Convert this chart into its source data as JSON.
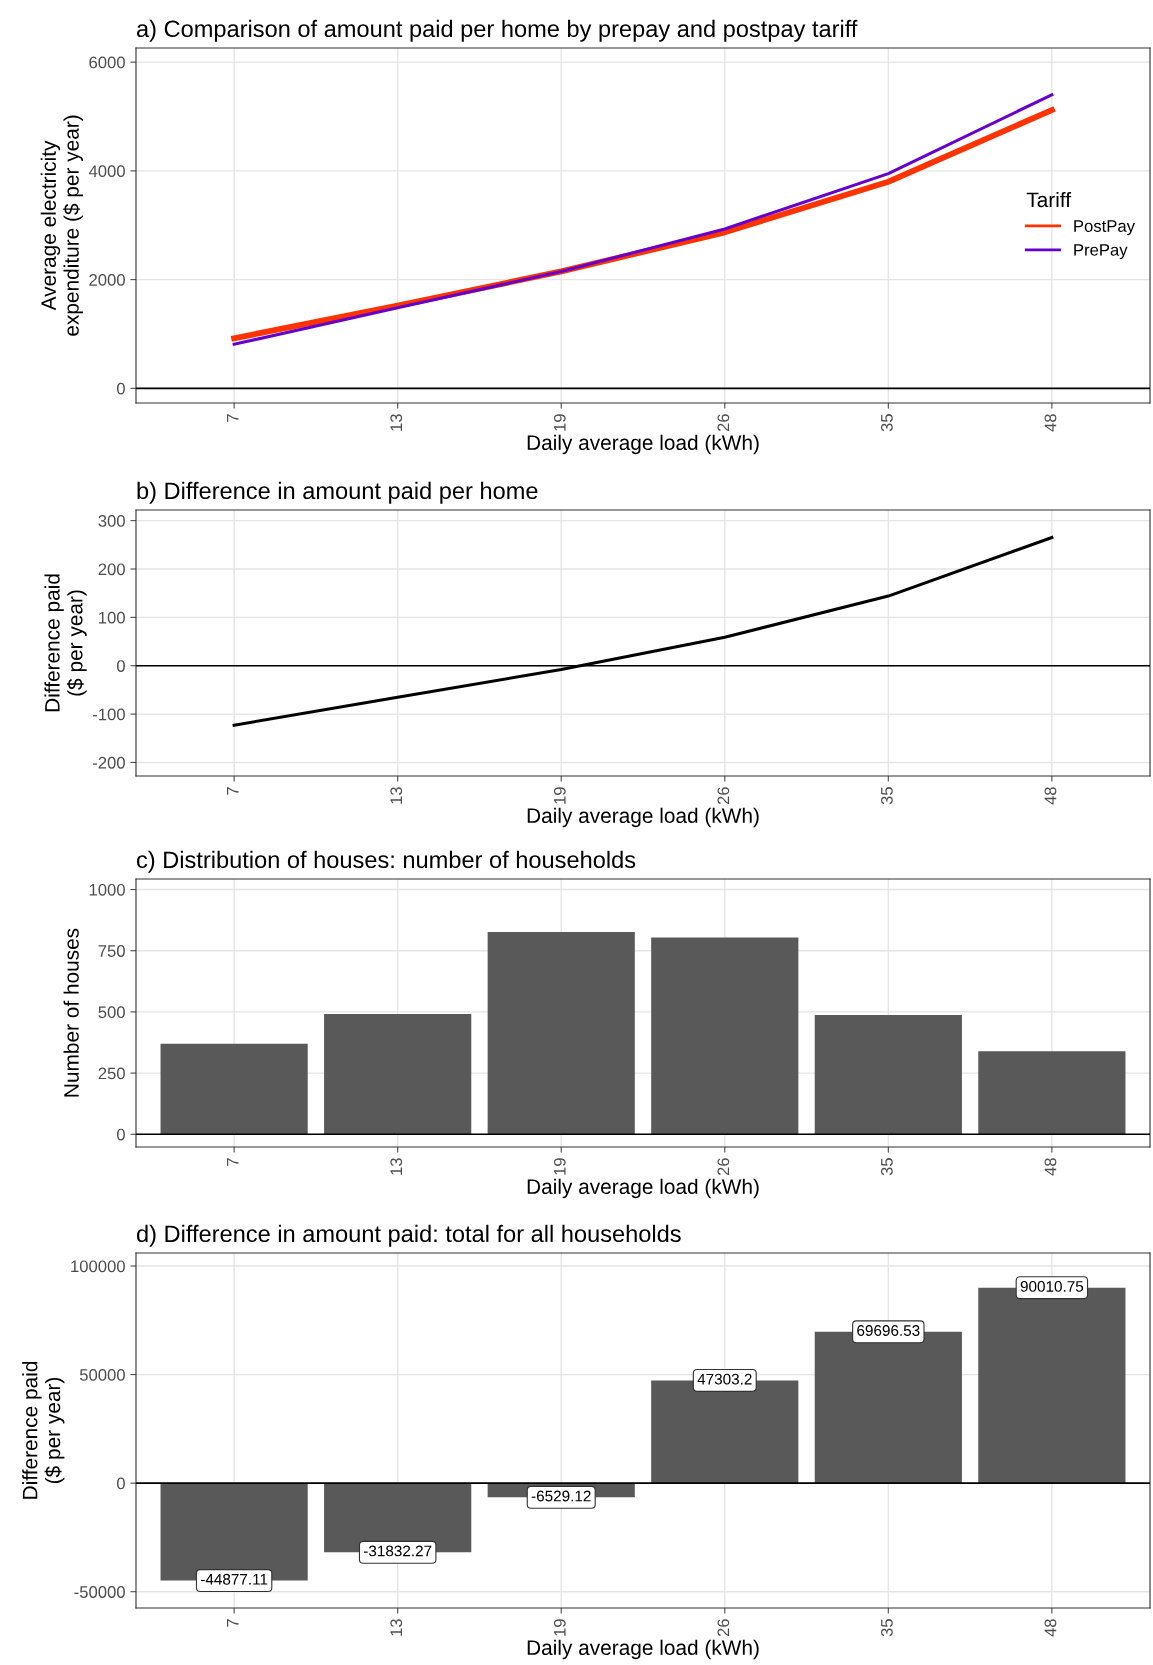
{
  "chart_data": [
    {
      "type": "line",
      "title": "a) Comparison of amount paid per home by prepay and postpay tariff",
      "xlabel": "Daily average load (kWh)",
      "ylabel": "Average electricity\nexpenditure ($ per year)",
      "legend_title": "Tariff",
      "legend": "right",
      "categories": [
        "7",
        "13",
        "19",
        "26",
        "35",
        "48"
      ],
      "series": [
        {
          "name": "PostPay",
          "color": "#ff3300",
          "values": [
            920,
            1520,
            2150,
            2870,
            3800,
            5120
          ]
        },
        {
          "name": "PrePay",
          "color": "#6600cc",
          "values": [
            810,
            1480,
            2150,
            2930,
            3950,
            5400
          ]
        }
      ],
      "ylim": [
        -270,
        6260
      ],
      "yticks": [
        0,
        2000,
        4000,
        6000
      ],
      "grid": true,
      "ref_lines": [
        {
          "axis": "y",
          "value": 0,
          "color": "#000000"
        }
      ]
    },
    {
      "type": "line",
      "title": "b) Difference in amount paid per home",
      "xlabel": "Daily average load (kWh)",
      "ylabel": "Difference paid\n($ per year)",
      "categories": [
        "7",
        "13",
        "19",
        "26",
        "35",
        "48"
      ],
      "series": [
        {
          "color": "#000000",
          "values": [
            -123,
            -65,
            -8,
            59,
            144,
            265
          ]
        }
      ],
      "ylim": [
        -228,
        322
      ],
      "yticks": [
        -200,
        -100,
        0,
        100,
        200,
        300
      ],
      "grid": true,
      "ref_lines": [
        {
          "axis": "y",
          "value": 0,
          "color": "#000000"
        }
      ]
    },
    {
      "type": "bar",
      "title": "c) Distribution of houses: number of households",
      "xlabel": "Daily average load (kWh)",
      "ylabel": "Number of houses",
      "categories": [
        "7",
        "13",
        "19",
        "26",
        "35",
        "48"
      ],
      "series": [
        {
          "color": "#595959",
          "values": [
            370,
            491,
            826,
            804,
            487,
            339
          ]
        }
      ],
      "ylim": [
        -52,
        1043
      ],
      "yticks": [
        0,
        250,
        500,
        750,
        1000
      ],
      "grid": true,
      "ref_lines": [
        {
          "axis": "y",
          "value": 0,
          "color": "#000000"
        }
      ]
    },
    {
      "type": "bar",
      "title": "d) Difference in amount paid: total for all households",
      "xlabel": "Daily average load (kWh)",
      "ylabel": "Difference paid\n($ per year)",
      "categories": [
        "7",
        "13",
        "19",
        "26",
        "35",
        "48"
      ],
      "series": [
        {
          "color": "#595959",
          "values": [
            -44877.11,
            -31832.27,
            -6529.12,
            47303.2,
            69696.53,
            90010.75
          ]
        }
      ],
      "data_labels": true,
      "ylim": [
        -57500,
        106000
      ],
      "yticks": [
        -50000,
        0,
        50000,
        100000
      ],
      "grid": true,
      "ref_lines": [
        {
          "axis": "y",
          "value": 0,
          "color": "#000000"
        }
      ]
    }
  ]
}
